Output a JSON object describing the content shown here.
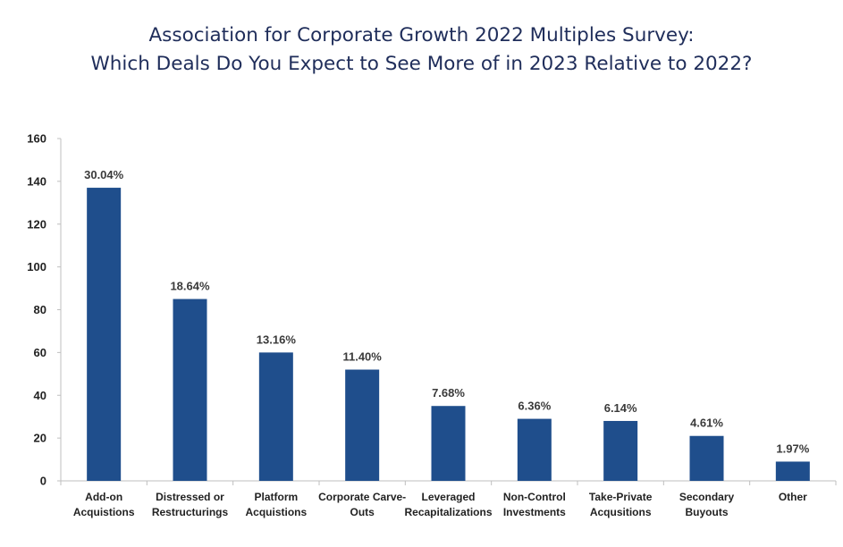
{
  "chart_data": {
    "type": "bar",
    "title": "Association for Corporate Growth 2022 Multiples Survey:",
    "subtitle": "Which Deals Do You Expect to See More of in 2023 Relative to 2022?",
    "xlabel": "",
    "ylabel": "",
    "categories": [
      [
        "Add-on",
        "Acquistions"
      ],
      [
        "Distressed or",
        "Restructurings"
      ],
      [
        "Platform",
        "Acquistions"
      ],
      [
        "Corporate Carve-",
        "Outs"
      ],
      [
        "Leveraged",
        "Recapitalizations"
      ],
      [
        "Non-Control",
        "Investments"
      ],
      [
        "Take-Private",
        "Acqusitions"
      ],
      [
        "Secondary",
        "Buyouts"
      ],
      [
        "Other"
      ]
    ],
    "values": [
      137,
      85,
      60,
      52,
      35,
      29,
      28,
      21,
      9
    ],
    "data_labels": [
      "30.04%",
      "18.64%",
      "13.16%",
      "11.40%",
      "7.68%",
      "6.36%",
      "6.14%",
      "4.61%",
      "1.97%"
    ],
    "ylim": [
      0,
      160
    ],
    "yticks": [
      0,
      20,
      40,
      60,
      80,
      100,
      120,
      140,
      160
    ],
    "grid": false,
    "legend": "none",
    "bar_color": "#1f4e8c",
    "axis_color": "#bfbfbf"
  }
}
